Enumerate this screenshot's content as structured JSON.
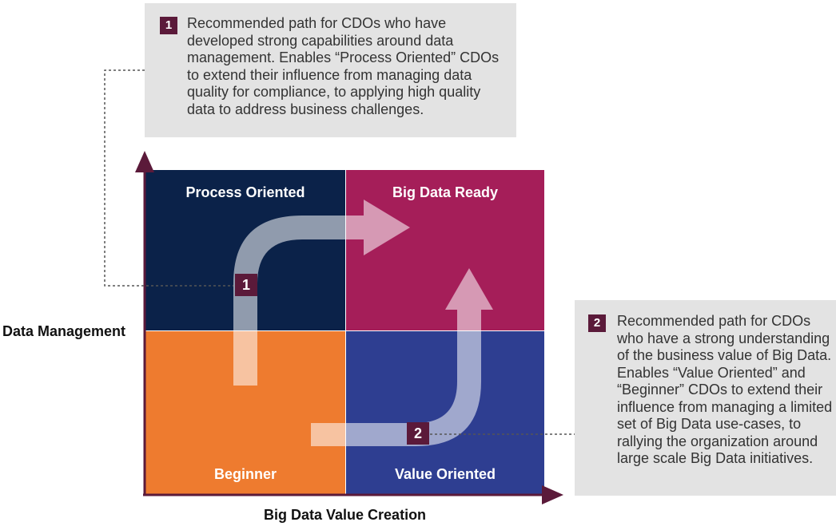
{
  "quadrants": {
    "top_left": {
      "label": "Process Oriented",
      "color": "#0b2249"
    },
    "top_right": {
      "label": "Big Data Ready",
      "color": "#a51e59"
    },
    "bottom_left": {
      "label": "Beginner",
      "color": "#ee7b2f"
    },
    "bottom_right": {
      "label": "Value Oriented",
      "color": "#2e3e91"
    }
  },
  "axes": {
    "y_label": "Data Management",
    "x_label": "Big Data Value Creation",
    "color": "#5b1a3a"
  },
  "paths": [
    {
      "number": "1",
      "description": "Recommended path for CDOs who have developed strong capabilities around data management. Enables “Process Oriented” CDOs to extend their influence from managing data quality for compliance, to applying high quality data to address business challenges."
    },
    {
      "number": "2",
      "description": "Recommended path for CDOs who have a strong understanding of the business value of Big Data. Enables “Value Oriented” and “Beginner” CDOs to extend their influence from managing a limited set of Big Data use-cases, to rallying the organization around large scale Big Data initiatives."
    }
  ],
  "colors": {
    "marker": "#5b1a3a",
    "callout_background": "#e3e3e3",
    "path_arrow": "#ffffff"
  }
}
